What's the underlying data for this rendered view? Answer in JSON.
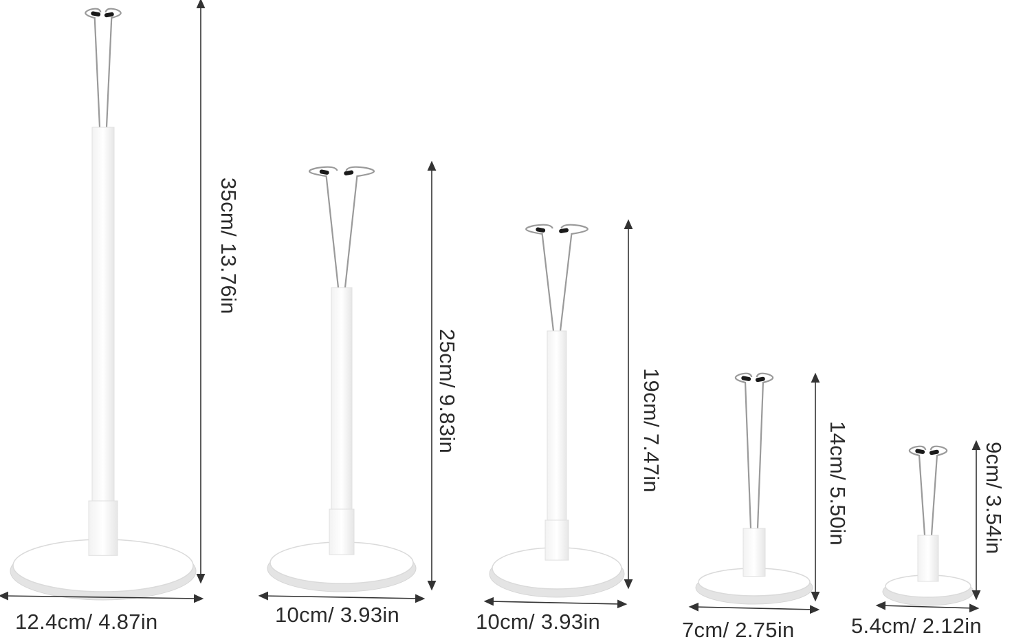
{
  "stands": [
    {
      "height_label": "35cm/ 13.76in",
      "width_label": "12.4cm/ 4.87in"
    },
    {
      "height_label": "25cm/ 9.83in",
      "width_label": "10cm/ 3.93in"
    },
    {
      "height_label": "19cm/ 7.47in",
      "width_label": "10cm/ 3.93in"
    },
    {
      "height_label": "14cm/ 5.50in",
      "width_label": "7cm/ 2.75in"
    },
    {
      "height_label": "9cm/ 3.54in",
      "width_label": "5.4cm/ 2.12in"
    }
  ],
  "colors": {
    "stand": "#ffffff",
    "stand_shade": "#e4e4e4",
    "wire": "#9a9a9a",
    "clip": "#1a1a1a",
    "dimension_line": "#333333"
  }
}
